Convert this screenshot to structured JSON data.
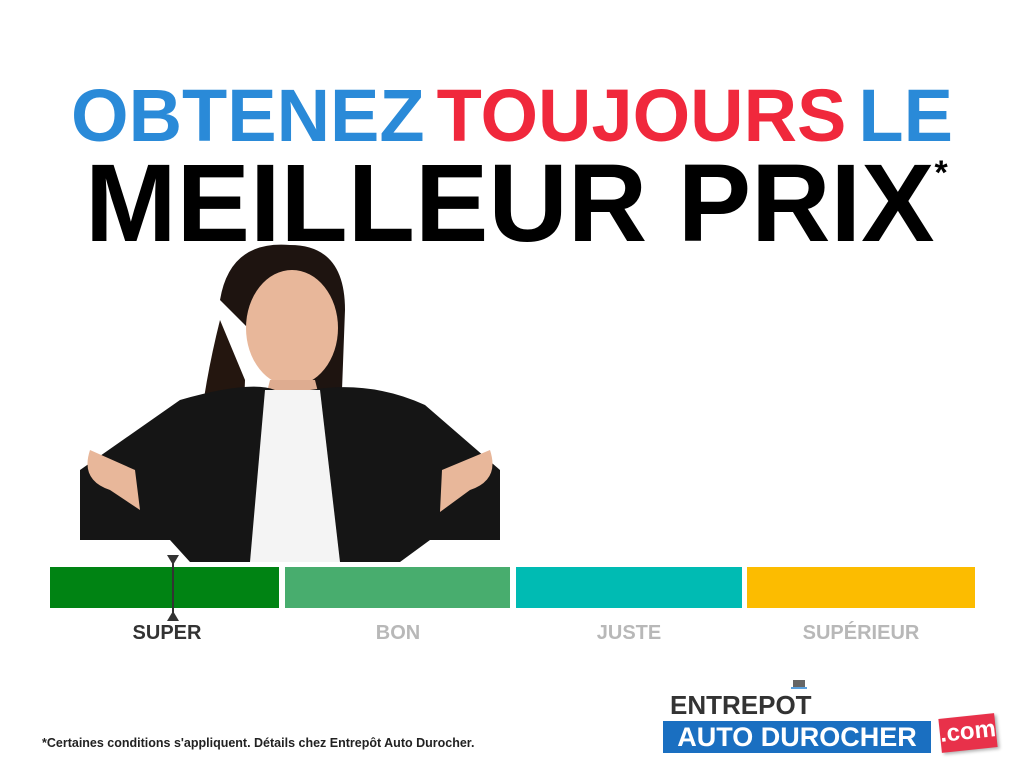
{
  "headline": {
    "line1": [
      {
        "text": "OBTENEZ",
        "color": "#2a8ad8"
      },
      {
        "text": "TOUJOURS",
        "color": "#f0283c"
      },
      {
        "text": "LE",
        "color": "#2a8ad8"
      }
    ],
    "line2": "MEILLEUR PRIX",
    "asterisk": "*"
  },
  "price_scale": {
    "selected": "SUPER",
    "segments": [
      {
        "label": "SUPER",
        "color": "#008313"
      },
      {
        "label": "BON",
        "color": "#48ad6e"
      },
      {
        "label": "JUSTE",
        "color": "#00bbb3"
      },
      {
        "label": "SUPÉRIEUR",
        "color": "#fcbc00"
      }
    ]
  },
  "disclaimer": "*Certaines conditions s'appliquent. Détails chez Entrepôt Auto Durocher.",
  "logo": {
    "line1": "ENTREPOT",
    "line2": "AUTO DUROCHER",
    "suffix": ".com"
  }
}
